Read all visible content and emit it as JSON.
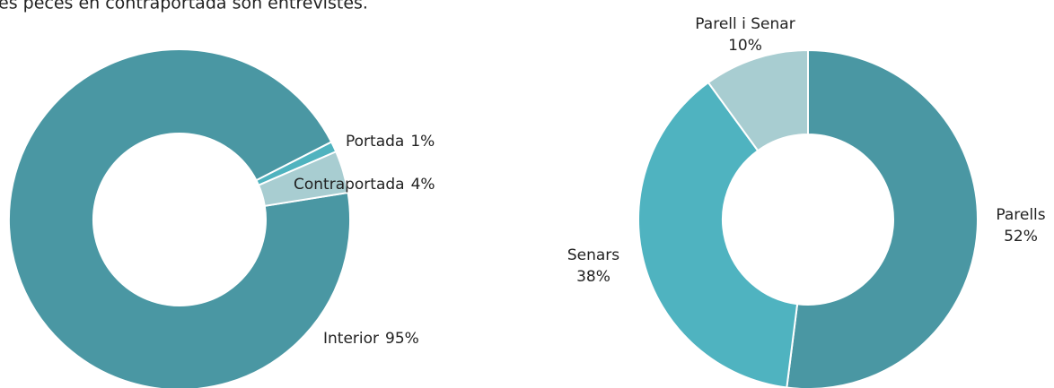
{
  "caption": "es peces en contraportada son entrevistes.",
  "chart_data": [
    {
      "type": "donut",
      "categories": [
        "Interior",
        "Portada",
        "Contraportada"
      ],
      "values": [
        95,
        1,
        4
      ],
      "value_labels": [
        "95%",
        "1%",
        "4%"
      ],
      "colors": [
        "#4a97a3",
        "#4fb3bf",
        "#a8cdd1"
      ]
    },
    {
      "type": "donut",
      "categories": [
        "Parells",
        "Senars",
        "Parell i Senar"
      ],
      "values": [
        52,
        38,
        10
      ],
      "value_labels": [
        "52%",
        "38%",
        "10%"
      ],
      "colors": [
        "#4a97a3",
        "#4fb3c0",
        "#a8cdd1"
      ]
    }
  ]
}
